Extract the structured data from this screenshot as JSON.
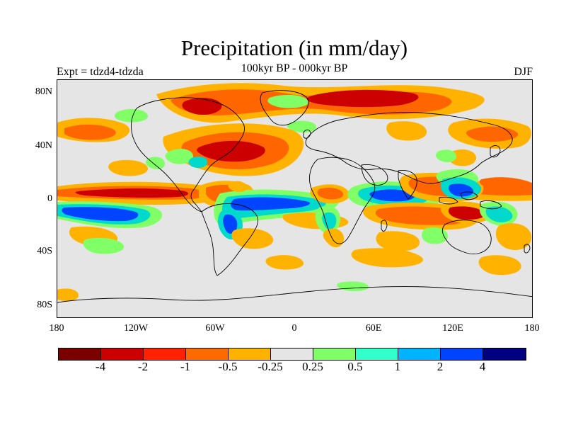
{
  "title": "Precipitation (in mm/day)",
  "subtitle": "100kyr BP - 000kyr BP",
  "experiment_label": "Expt = tdzd4-tdzda",
  "season_label": "DJF",
  "map": {
    "latitude_labels": [
      "80N",
      "40N",
      "0",
      "40S",
      "80S"
    ],
    "longitude_labels": [
      "180",
      "120W",
      "60W",
      "0",
      "60E",
      "120E",
      "180"
    ],
    "colors": {
      "background": "#e5e5e5",
      "coastline": "#000000",
      "strong_dry": "#cc0000",
      "moderate_dry": "#ff6600",
      "weak_dry": "#ffb300",
      "weak_wet": "#80ff66",
      "moderate_wet": "#00d9cc",
      "strong_wet": "#0044ff"
    }
  },
  "colorbar": {
    "colors": [
      "#7a0000",
      "#cc0000",
      "#ff2200",
      "#ff6a00",
      "#ffb300",
      "#e5e5e5",
      "#80ff66",
      "#33ffcc",
      "#00b3ff",
      "#0044ff",
      "#000080"
    ],
    "labels": [
      "-4",
      "-2",
      "-1",
      "-0.5",
      "-0.25",
      "0.25",
      "0.5",
      "1",
      "2",
      "4"
    ]
  }
}
